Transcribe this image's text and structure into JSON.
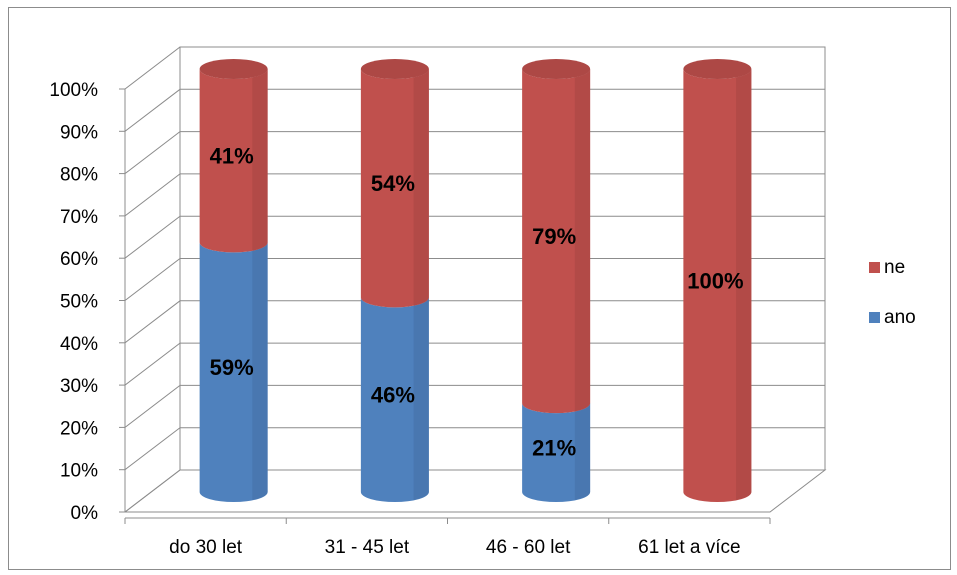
{
  "chart_data": {
    "type": "bar",
    "stacked": true,
    "percent_stacked": true,
    "style": "3d-cylinder",
    "categories": [
      "do 30 let",
      "31 - 45 let",
      "46 - 60 let",
      "61 let a více"
    ],
    "series": [
      {
        "name": "ano",
        "values": [
          59,
          46,
          21,
          0
        ],
        "labels": [
          "59%",
          "46%",
          "21%",
          ""
        ],
        "color": "#4f81bd"
      },
      {
        "name": "ne",
        "values": [
          41,
          54,
          79,
          100
        ],
        "labels": [
          "41%",
          "54%",
          "79%",
          "100%"
        ],
        "color": "#c0504d"
      }
    ],
    "ylim": [
      0,
      100
    ],
    "yticks": [
      "0%",
      "10%",
      "20%",
      "30%",
      "40%",
      "50%",
      "60%",
      "70%",
      "80%",
      "90%",
      "100%"
    ],
    "grid": true,
    "legend_position": "right",
    "legend_order": [
      "ne",
      "ano"
    ]
  }
}
